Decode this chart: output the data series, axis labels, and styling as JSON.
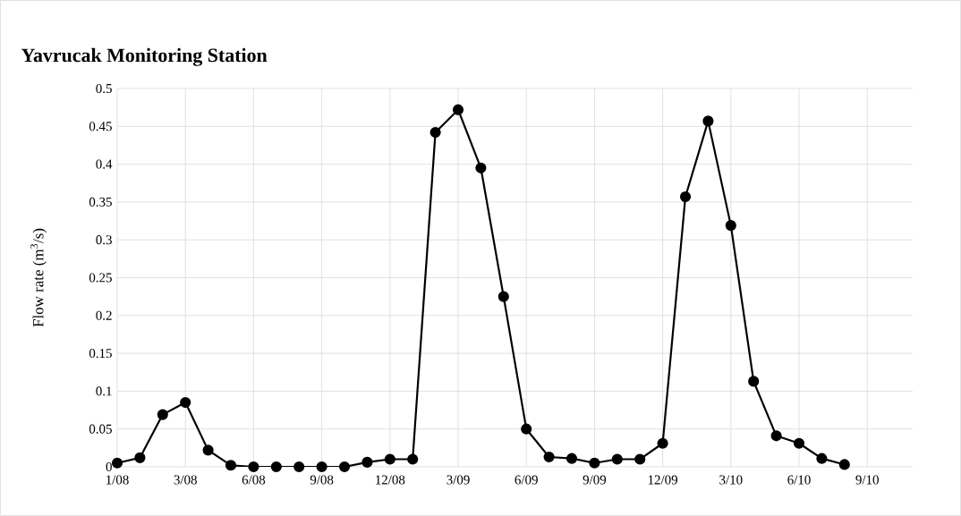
{
  "chart_data": {
    "type": "line",
    "title": "**Yavrucak Monitoring Station**",
    "ylabel": "Flow rate (m$^{3}$/s)",
    "categories": [
      "1/08",
      null,
      null,
      "3/08",
      null,
      null,
      "6/08",
      null,
      null,
      "9/08",
      null,
      null,
      "12/08",
      null,
      null,
      "3/09",
      null,
      null,
      "6/09",
      null,
      null,
      "9/09",
      null,
      null,
      "12/09",
      null,
      null,
      "3/10",
      null,
      null,
      "6/10",
      null,
      null,
      "9/10",
      null,
      null
    ],
    "series": [
      {
        "color": "#000000",
        "values": [
          0.005,
          0.012,
          0.069,
          0.085,
          0.022,
          0.002,
          0,
          0,
          0,
          0,
          0,
          0.006,
          0.01,
          0.01,
          0.442,
          0.472,
          0.395,
          0.225,
          0.05,
          0.013,
          0.011,
          0.005,
          0.01,
          0.01,
          0.031,
          0.357,
          0.457,
          0.319,
          0.113,
          0.041,
          0.031,
          0.011,
          0.003,
          null,
          null,
          null
        ]
      }
    ],
    "ylim": [
      0,
      0.5
    ],
    "yticks": [
      0,
      0.05,
      0.1,
      0.15,
      0.2,
      0.25,
      0.3,
      0.35,
      0.4,
      0.45,
      0.5
    ],
    "grid": true,
    "marker": "circle",
    "line_style": "solid"
  }
}
